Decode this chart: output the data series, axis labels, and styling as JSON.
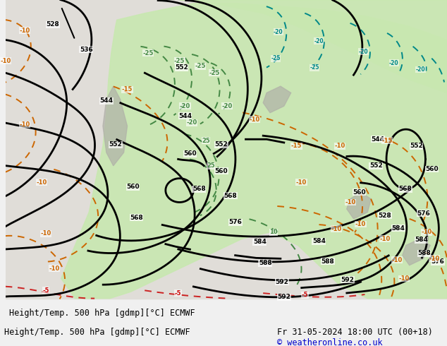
{
  "title_left": "Height/Temp. 500 hPa [gdmp][°C] ECMWF",
  "title_right": "Fr 31-05-2024 18:00 UTC (00+18)",
  "copyright": "© weatheronline.co.uk",
  "bg_color": "#e8e8e8",
  "land_color": "#d4d4d4",
  "green_fill_color": "#c8e6c0",
  "text_color_black": "#000000",
  "text_color_orange": "#cc6600",
  "text_color_green": "#44aa44",
  "text_color_cyan": "#00aaaa",
  "text_color_red": "#cc0000",
  "contour_black": "#000000",
  "contour_orange": "#cc6600",
  "contour_green": "#44aa44",
  "contour_cyan": "#00aaaa",
  "contour_red": "#cc0000",
  "title_fontsize": 9,
  "label_fontsize": 8
}
